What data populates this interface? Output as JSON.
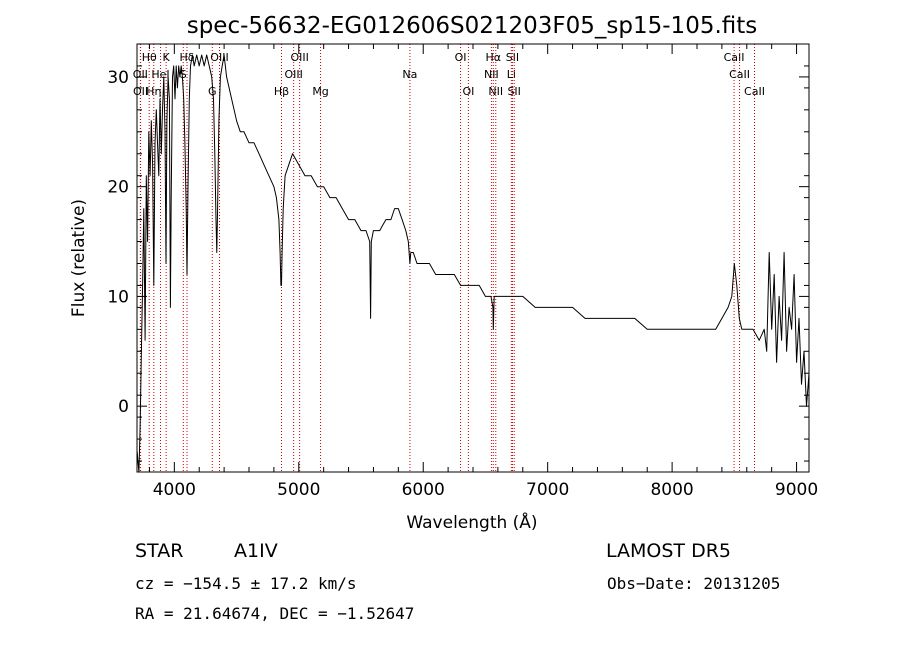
{
  "chart_data": {
    "type": "line",
    "title": "spec-56632-EG012606S021203F05_sp15-105.fits",
    "xlabel": "Wavelength (Å)",
    "ylabel": "Flux (relative)",
    "xlim": [
      3700,
      9100
    ],
    "ylim": [
      -6,
      33
    ],
    "xticks": [
      4000,
      5000,
      6000,
      7000,
      8000,
      9000
    ],
    "yticks": [
      0,
      10,
      20,
      30
    ],
    "xticklabels": [
      "4000",
      "5000",
      "6000",
      "7000",
      "8000",
      "9000"
    ],
    "yticklabels": [
      "0",
      "10",
      "20",
      "30"
    ],
    "grid": false,
    "line_color": "#000000",
    "marker_color": "#cc0000",
    "series": [
      {
        "points": [
          [
            3700,
            -4
          ],
          [
            3715,
            -6
          ],
          [
            3725,
            -2
          ],
          [
            3735,
            5
          ],
          [
            3745,
            11
          ],
          [
            3755,
            18
          ],
          [
            3765,
            6
          ],
          [
            3775,
            21
          ],
          [
            3785,
            15
          ],
          [
            3795,
            25
          ],
          [
            3805,
            21
          ],
          [
            3815,
            26
          ],
          [
            3825,
            22
          ],
          [
            3835,
            11
          ],
          [
            3845,
            24
          ],
          [
            3855,
            27
          ],
          [
            3865,
            24
          ],
          [
            3875,
            21
          ],
          [
            3885,
            28
          ],
          [
            3895,
            23
          ],
          [
            3905,
            27
          ],
          [
            3915,
            30
          ],
          [
            3925,
            25
          ],
          [
            3933,
            13
          ],
          [
            3940,
            26
          ],
          [
            3950,
            30
          ],
          [
            3960,
            28
          ],
          [
            3968,
            9
          ],
          [
            3975,
            19
          ],
          [
            3985,
            30
          ],
          [
            3995,
            31
          ],
          [
            4005,
            28
          ],
          [
            4015,
            31
          ],
          [
            4025,
            29
          ],
          [
            4035,
            31
          ],
          [
            4045,
            30
          ],
          [
            4055,
            31
          ],
          [
            4065,
            30
          ],
          [
            4075,
            28
          ],
          [
            4085,
            24
          ],
          [
            4095,
            18
          ],
          [
            4102,
            12
          ],
          [
            4110,
            20
          ],
          [
            4120,
            28
          ],
          [
            4130,
            31
          ],
          [
            4145,
            32
          ],
          [
            4160,
            31
          ],
          [
            4180,
            32
          ],
          [
            4200,
            31
          ],
          [
            4220,
            32
          ],
          [
            4240,
            31
          ],
          [
            4260,
            32
          ],
          [
            4280,
            31
          ],
          [
            4300,
            30
          ],
          [
            4315,
            28
          ],
          [
            4325,
            23
          ],
          [
            4335,
            17
          ],
          [
            4341,
            14
          ],
          [
            4348,
            18
          ],
          [
            4358,
            26
          ],
          [
            4370,
            30
          ],
          [
            4385,
            31
          ],
          [
            4400,
            32
          ],
          [
            4420,
            30
          ],
          [
            4440,
            29
          ],
          [
            4460,
            28
          ],
          [
            4480,
            27
          ],
          [
            4500,
            26
          ],
          [
            4530,
            25
          ],
          [
            4560,
            25
          ],
          [
            4600,
            24
          ],
          [
            4640,
            24
          ],
          [
            4680,
            23
          ],
          [
            4720,
            22
          ],
          [
            4760,
            21
          ],
          [
            4800,
            20
          ],
          [
            4820,
            19
          ],
          [
            4840,
            17
          ],
          [
            4850,
            14
          ],
          [
            4856,
            11
          ],
          [
            4861,
            11
          ],
          [
            4866,
            14
          ],
          [
            4875,
            18
          ],
          [
            4890,
            21
          ],
          [
            4920,
            22
          ],
          [
            4950,
            23
          ],
          [
            5000,
            22
          ],
          [
            5050,
            21
          ],
          [
            5100,
            21
          ],
          [
            5150,
            20
          ],
          [
            5200,
            20
          ],
          [
            5250,
            19
          ],
          [
            5300,
            19
          ],
          [
            5350,
            18
          ],
          [
            5400,
            17
          ],
          [
            5450,
            17
          ],
          [
            5500,
            16
          ],
          [
            5540,
            16
          ],
          [
            5570,
            15
          ],
          [
            5577,
            8
          ],
          [
            5583,
            15
          ],
          [
            5600,
            16
          ],
          [
            5650,
            16
          ],
          [
            5700,
            17
          ],
          [
            5740,
            17
          ],
          [
            5770,
            18
          ],
          [
            5800,
            18
          ],
          [
            5830,
            17
          ],
          [
            5860,
            16
          ],
          [
            5880,
            15
          ],
          [
            5893,
            13
          ],
          [
            5900,
            14
          ],
          [
            5920,
            14
          ],
          [
            5950,
            13
          ],
          [
            6000,
            13
          ],
          [
            6050,
            13
          ],
          [
            6100,
            12
          ],
          [
            6150,
            12
          ],
          [
            6200,
            12
          ],
          [
            6250,
            12
          ],
          [
            6300,
            11
          ],
          [
            6350,
            11
          ],
          [
            6400,
            11
          ],
          [
            6450,
            11
          ],
          [
            6500,
            10
          ],
          [
            6545,
            10
          ],
          [
            6560,
            9
          ],
          [
            6563,
            7
          ],
          [
            6570,
            10
          ],
          [
            6600,
            10
          ],
          [
            6650,
            10
          ],
          [
            6700,
            10
          ],
          [
            6800,
            10
          ],
          [
            6900,
            9
          ],
          [
            7000,
            9
          ],
          [
            7100,
            9
          ],
          [
            7200,
            9
          ],
          [
            7300,
            8
          ],
          [
            7400,
            8
          ],
          [
            7500,
            8
          ],
          [
            7600,
            8
          ],
          [
            7700,
            8
          ],
          [
            7800,
            7
          ],
          [
            7900,
            7
          ],
          [
            8000,
            7
          ],
          [
            8100,
            7
          ],
          [
            8200,
            7
          ],
          [
            8300,
            7
          ],
          [
            8350,
            7
          ],
          [
            8400,
            8
          ],
          [
            8450,
            9
          ],
          [
            8480,
            10
          ],
          [
            8500,
            13
          ],
          [
            8520,
            11
          ],
          [
            8540,
            8
          ],
          [
            8560,
            7
          ],
          [
            8600,
            7
          ],
          [
            8650,
            7
          ],
          [
            8700,
            6
          ],
          [
            8740,
            7
          ],
          [
            8760,
            5
          ],
          [
            8780,
            14
          ],
          [
            8800,
            7
          ],
          [
            8820,
            12
          ],
          [
            8840,
            4
          ],
          [
            8860,
            10
          ],
          [
            8880,
            6
          ],
          [
            8900,
            14
          ],
          [
            8920,
            5
          ],
          [
            8940,
            9
          ],
          [
            8960,
            7
          ],
          [
            8980,
            12
          ],
          [
            9000,
            4
          ],
          [
            9020,
            8
          ],
          [
            9040,
            2
          ],
          [
            9060,
            5
          ],
          [
            9080,
            0
          ],
          [
            9100,
            3
          ]
        ]
      }
    ],
    "line_markers": [
      {
        "label": "Hθ",
        "x": 3798,
        "row": 1
      },
      {
        "label": "K",
        "x": 3934,
        "row": 1
      },
      {
        "label": "Hδ",
        "x": 4102,
        "row": 1
      },
      {
        "label": "OIII",
        "x": 4363,
        "row": 1
      },
      {
        "label": "OIII",
        "x": 5007,
        "row": 1
      },
      {
        "label": "OI",
        "x": 6300,
        "row": 1
      },
      {
        "label": "Hα",
        "x": 6563,
        "row": 1
      },
      {
        "label": "SII",
        "x": 6717,
        "row": 1
      },
      {
        "label": "CaII",
        "x": 8498,
        "row": 1
      },
      {
        "label": "OII",
        "x": 3727,
        "row": 2
      },
      {
        "label": "HeI",
        "x": 3889,
        "row": 2
      },
      {
        "label": "S",
        "x": 4072,
        "row": 2
      },
      {
        "label": "OIII",
        "x": 4959,
        "row": 2
      },
      {
        "label": "Na",
        "x": 5893,
        "row": 2
      },
      {
        "label": "NII",
        "x": 6548,
        "row": 2
      },
      {
        "label": "Li",
        "x": 6708,
        "row": 2
      },
      {
        "label": "CaII",
        "x": 8542,
        "row": 2
      },
      {
        "label": "OII",
        "x": 3729,
        "row": 3
      },
      {
        "label": "Hη",
        "x": 3835,
        "row": 3
      },
      {
        "label": "G",
        "x": 4305,
        "row": 3
      },
      {
        "label": "Hβ",
        "x": 4861,
        "row": 3
      },
      {
        "label": "Mg",
        "x": 5175,
        "row": 3
      },
      {
        "label": "OI",
        "x": 6363,
        "row": 3
      },
      {
        "label": "NII",
        "x": 6583,
        "row": 3
      },
      {
        "label": "SII",
        "x": 6731,
        "row": 3
      },
      {
        "label": "CaII",
        "x": 8662,
        "row": 3
      }
    ]
  },
  "info": {
    "object_class": "STAR",
    "subclass": "A1IV",
    "survey": "LAMOST  DR5",
    "cz": "cz = −154.5 ± 17.2 km/s",
    "obs_date": "Obs−Date: 20131205",
    "coords": "RA =  21.64674, DEC =  −1.52647"
  }
}
